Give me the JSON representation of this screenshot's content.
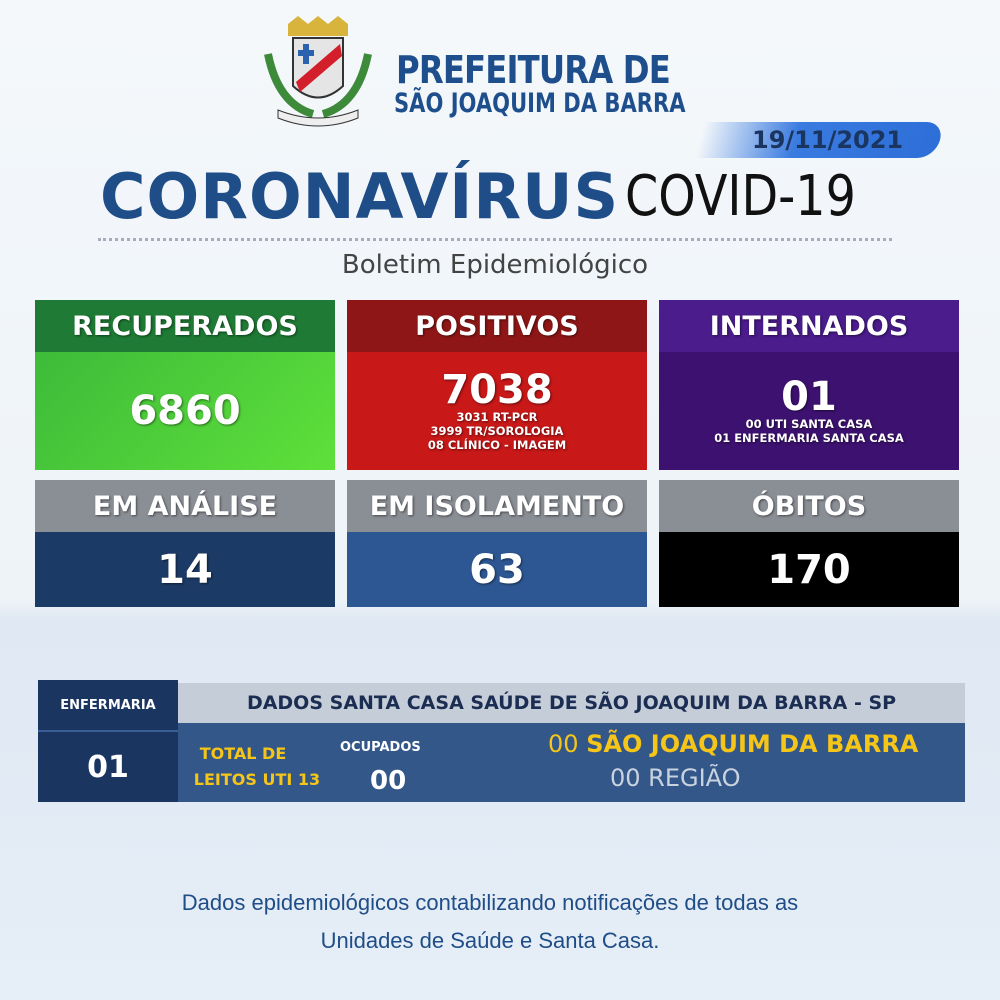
{
  "header": {
    "line1": "PREFEITURA DE",
    "line2": "SÃO JOAQUIM DA BARRA"
  },
  "date": "19/11/2021",
  "title": {
    "main": "CORONAVÍRUS",
    "secondary": "COVID-19"
  },
  "subtitle": "Boletim Epidemiológico",
  "cards": [
    {
      "label": "RECUPERADOS",
      "value": "6860",
      "details": []
    },
    {
      "label": "POSITIVOS",
      "value": "7038",
      "details": [
        "3031 RT-PCR",
        "3999 TR/SOROLOGIA",
        "08 CLÍNICO - IMAGEM"
      ]
    },
    {
      "label": "INTERNADOS",
      "value": "01",
      "details": [
        "00 UTI SANTA CASA",
        "01 ENFERMARIA SANTA CASA"
      ]
    },
    {
      "label": "EM ANÁLISE",
      "value": "14",
      "details": []
    },
    {
      "label": "EM ISOLAMENTO",
      "value": "63",
      "details": []
    },
    {
      "label": "ÓBITOS",
      "value": "170",
      "details": []
    }
  ],
  "table": {
    "left_header": "ENFERMARIA",
    "left_value": "01",
    "header": "DADOS SANTA CASA SAÚDE DE SÃO JOAQUIM DA BARRA - SP",
    "total_line1": "TOTAL DE",
    "total_line2": "LEITOS UTI 13",
    "occupied_label": "OCUPADOS",
    "occupied_value": "00",
    "local_value": "00",
    "local_label": "SÃO JOAQUIM DA BARRA",
    "region": "00 REGIÃO"
  },
  "footer": [
    "Dados epidemiológicos contabilizando notificações de todas as",
    "Unidades de Saúde e Santa Casa."
  ]
}
